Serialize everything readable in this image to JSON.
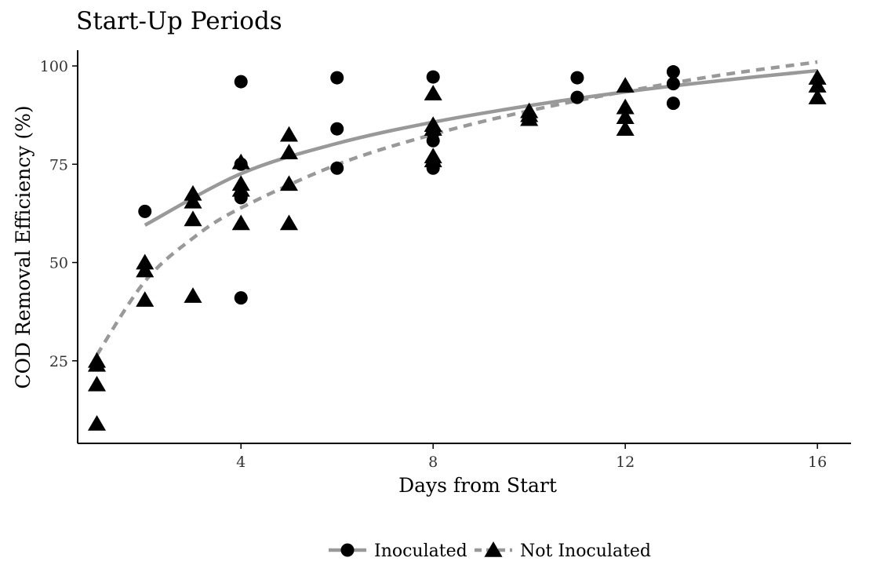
{
  "chart_data": {
    "type": "scatter",
    "title": "Start-Up Periods",
    "xlabel": "Days from Start",
    "ylabel": "COD Removal Efficiency (%)",
    "xlim": [
      0.6,
      16.7
    ],
    "ylim": [
      4,
      104
    ],
    "x_ticks": [
      4,
      8,
      12,
      16
    ],
    "y_ticks": [
      25,
      50,
      75,
      100
    ],
    "grid": false,
    "legend_position": "bottom",
    "series": [
      {
        "name": "Inoculated",
        "marker": "circle",
        "line_style": "solid",
        "marker_color": "#000000",
        "line_color": "#999999",
        "points": [
          {
            "x": 2,
            "y": 63
          },
          {
            "x": 4,
            "y": 96
          },
          {
            "x": 4,
            "y": 75
          },
          {
            "x": 4,
            "y": 66.5
          },
          {
            "x": 4,
            "y": 41
          },
          {
            "x": 6,
            "y": 97
          },
          {
            "x": 6,
            "y": 84
          },
          {
            "x": 6,
            "y": 74
          },
          {
            "x": 8,
            "y": 97.2
          },
          {
            "x": 8,
            "y": 83
          },
          {
            "x": 8,
            "y": 81
          },
          {
            "x": 8,
            "y": 74
          },
          {
            "x": 11,
            "y": 97
          },
          {
            "x": 11,
            "y": 92
          },
          {
            "x": 13,
            "y": 98.5
          },
          {
            "x": 13,
            "y": 95.5
          },
          {
            "x": 13,
            "y": 90.5
          }
        ],
        "trend": [
          {
            "x": 2,
            "y": 59.5
          },
          {
            "x": 4,
            "y": 72.6
          },
          {
            "x": 6,
            "y": 80.3
          },
          {
            "x": 8,
            "y": 85.7
          },
          {
            "x": 10,
            "y": 89.9
          },
          {
            "x": 12,
            "y": 93.4
          },
          {
            "x": 14,
            "y": 96.3
          },
          {
            "x": 16,
            "y": 98.8
          }
        ]
      },
      {
        "name": "Not Inoculated",
        "marker": "triangle",
        "line_style": "dashed",
        "marker_color": "#000000",
        "line_color": "#999999",
        "points": [
          {
            "x": 1,
            "y": 25
          },
          {
            "x": 1,
            "y": 24
          },
          {
            "x": 1,
            "y": 19
          },
          {
            "x": 1,
            "y": 9
          },
          {
            "x": 2,
            "y": 50
          },
          {
            "x": 2,
            "y": 48
          },
          {
            "x": 2,
            "y": 40.5
          },
          {
            "x": 3,
            "y": 67.5
          },
          {
            "x": 3,
            "y": 65.5
          },
          {
            "x": 3,
            "y": 61
          },
          {
            "x": 3,
            "y": 41.5
          },
          {
            "x": 4,
            "y": 75.5
          },
          {
            "x": 4,
            "y": 70
          },
          {
            "x": 4,
            "y": 68.5
          },
          {
            "x": 4,
            "y": 60
          },
          {
            "x": 5,
            "y": 82.5
          },
          {
            "x": 5,
            "y": 78
          },
          {
            "x": 5,
            "y": 70
          },
          {
            "x": 5,
            "y": 60
          },
          {
            "x": 8,
            "y": 93
          },
          {
            "x": 8,
            "y": 85
          },
          {
            "x": 8,
            "y": 84
          },
          {
            "x": 8,
            "y": 77
          },
          {
            "x": 8,
            "y": 76
          },
          {
            "x": 10,
            "y": 88.5
          },
          {
            "x": 10,
            "y": 87.5
          },
          {
            "x": 10,
            "y": 86.5
          },
          {
            "x": 12,
            "y": 95
          },
          {
            "x": 12,
            "y": 89.5
          },
          {
            "x": 12,
            "y": 87
          },
          {
            "x": 12,
            "y": 84
          },
          {
            "x": 16,
            "y": 97
          },
          {
            "x": 16,
            "y": 95
          },
          {
            "x": 16,
            "y": 92
          }
        ],
        "trend": [
          {
            "x": 1,
            "y": 26.5
          },
          {
            "x": 2,
            "y": 45.2
          },
          {
            "x": 3,
            "y": 56.2
          },
          {
            "x": 4,
            "y": 63.9
          },
          {
            "x": 6,
            "y": 74.9
          },
          {
            "x": 8,
            "y": 82.6
          },
          {
            "x": 10,
            "y": 88.6
          },
          {
            "x": 12,
            "y": 93.5
          },
          {
            "x": 14,
            "y": 97.7
          },
          {
            "x": 16,
            "y": 101
          }
        ]
      }
    ]
  }
}
